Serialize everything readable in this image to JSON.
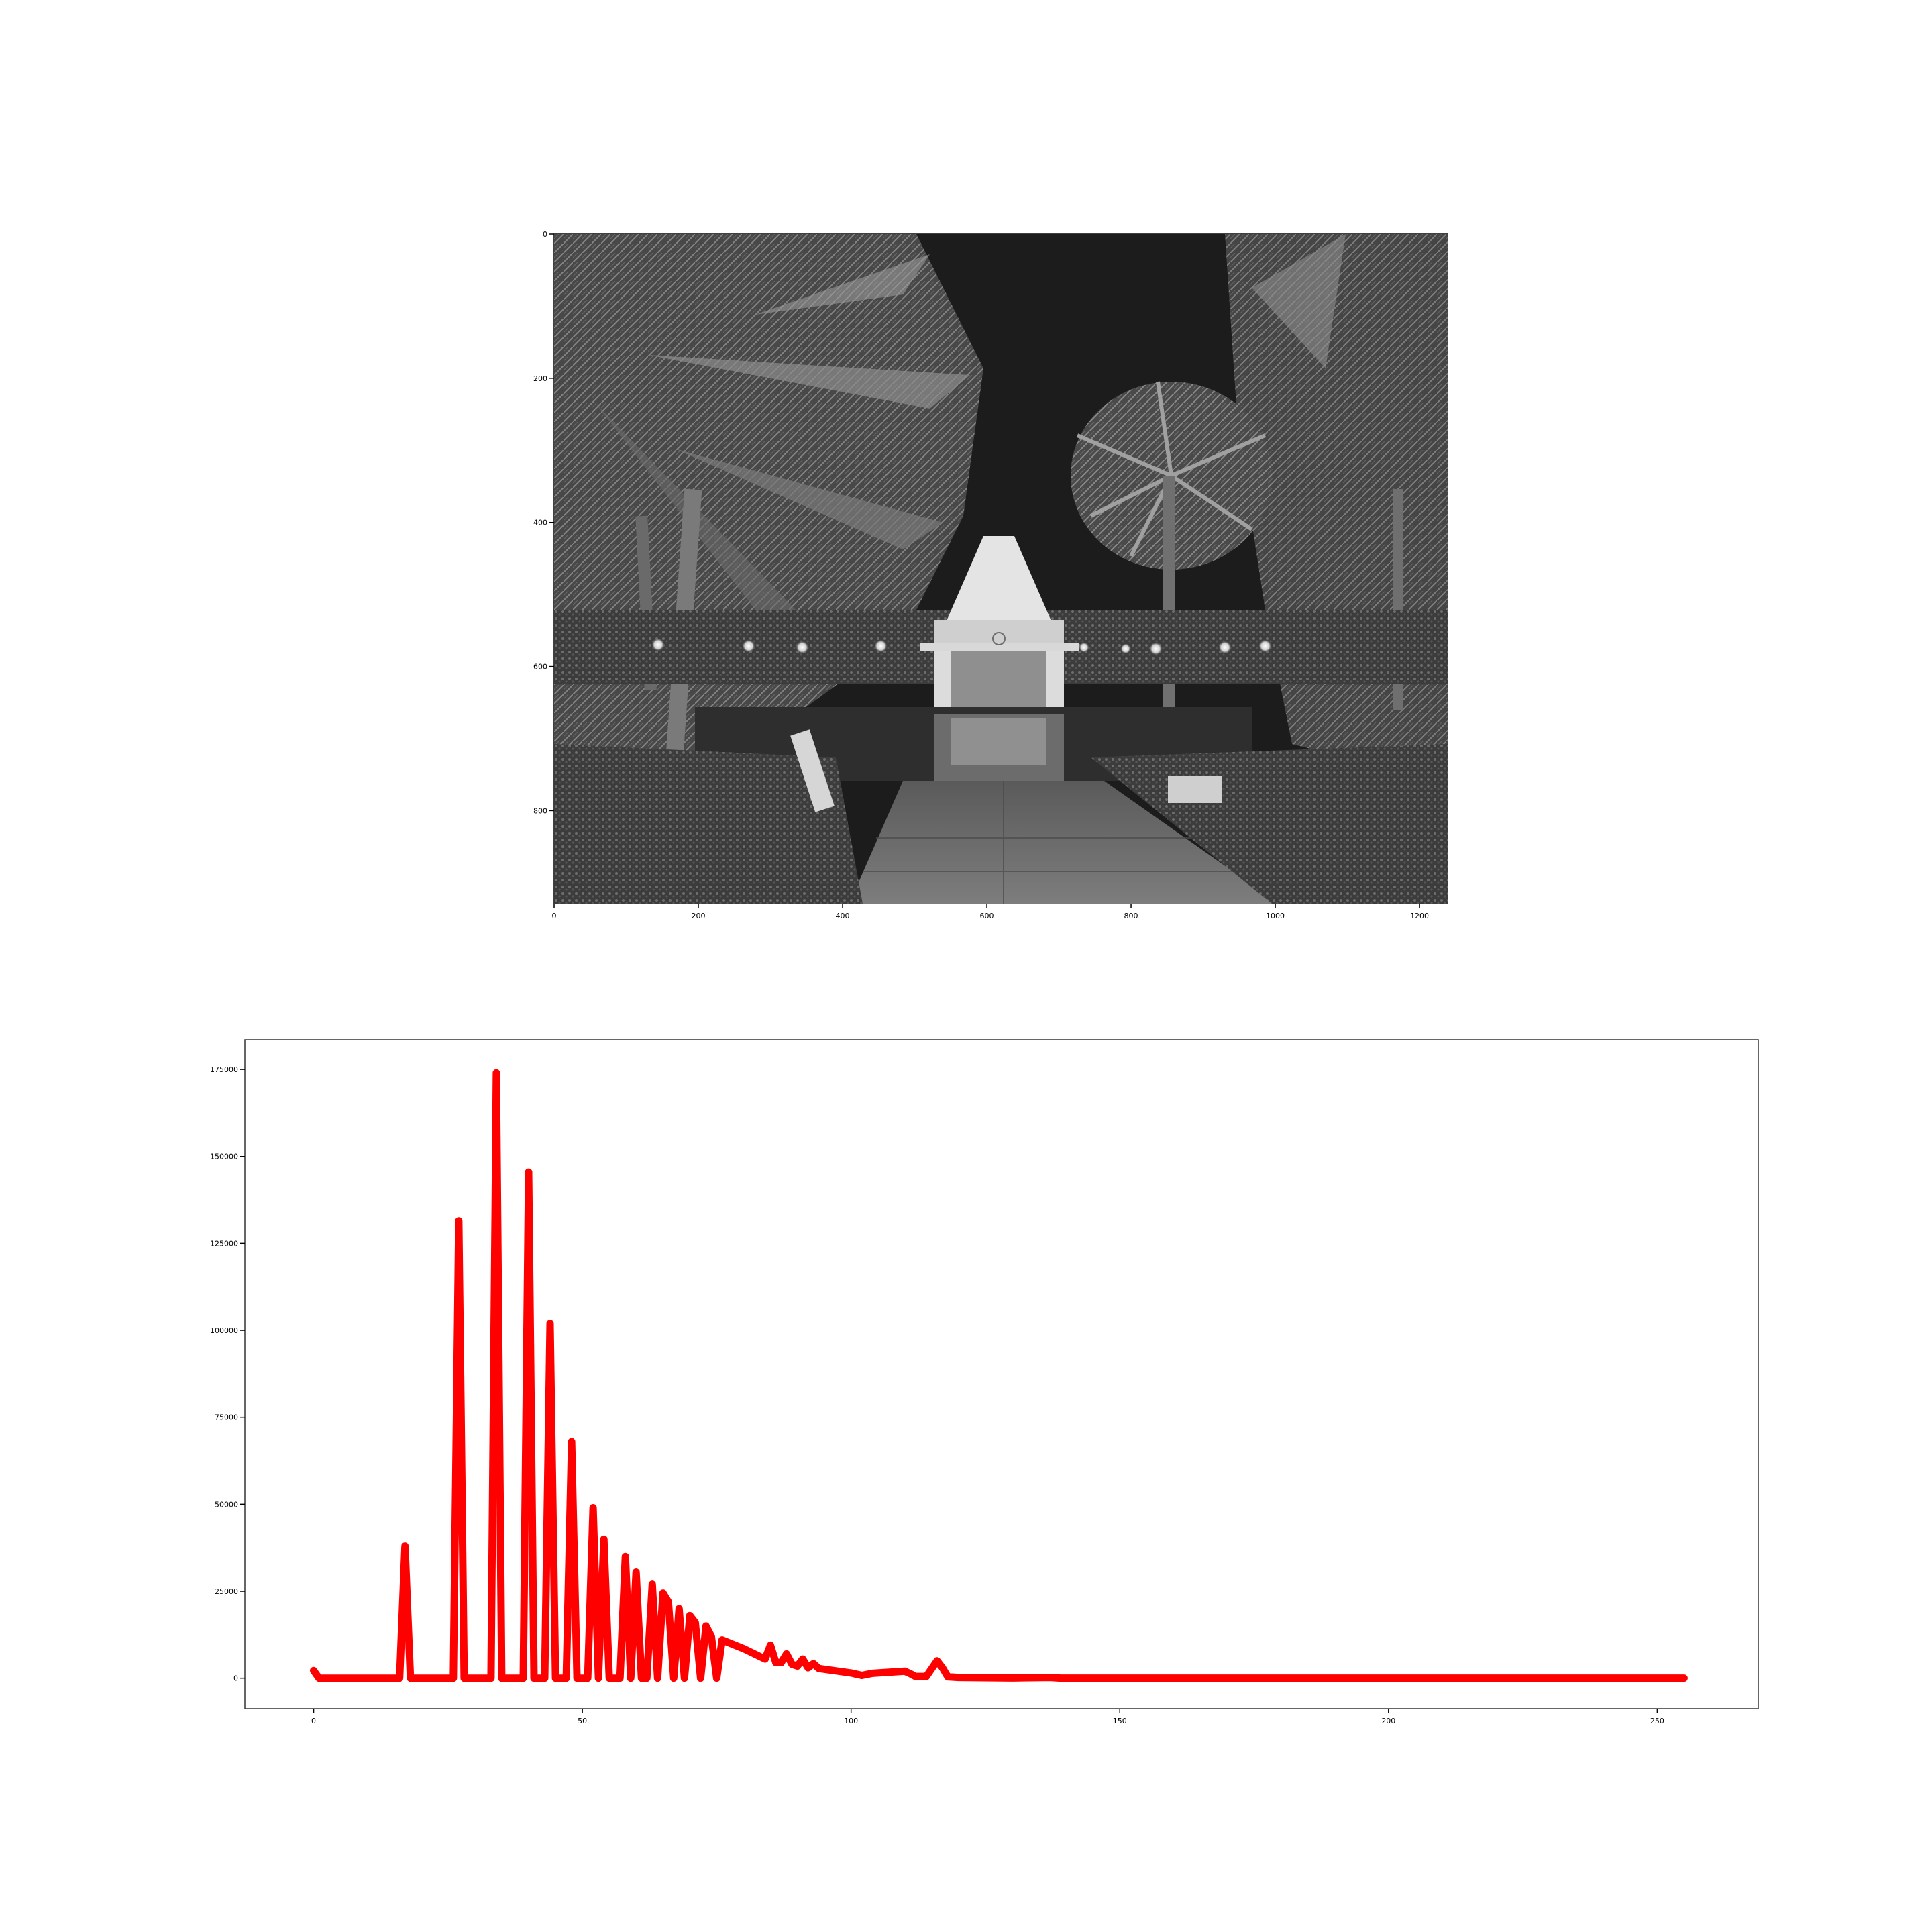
{
  "chart_data": [
    {
      "type": "image",
      "image_description": "grayscale photo",
      "x_ticks": [
        "0",
        "200",
        "400",
        "600",
        "800",
        "1000",
        "1200"
      ],
      "y_ticks": [
        "0",
        "200",
        "400",
        "600",
        "800"
      ],
      "xlim": [
        0,
        1239
      ],
      "ylim": [
        929,
        0
      ]
    },
    {
      "type": "line",
      "title": "",
      "xlabel": "",
      "ylabel": "",
      "xlim": [
        -12.8,
        268.8
      ],
      "ylim": [
        -8740,
        183500
      ],
      "x_ticks": [
        "0",
        "50",
        "100",
        "150",
        "200",
        "250"
      ],
      "y_ticks": [
        "0",
        "25000",
        "50000",
        "75000",
        "100000",
        "125000",
        "150000",
        "175000"
      ],
      "grid": false,
      "color": "#ff0000",
      "series": [
        {
          "x": [
            0,
            1,
            16,
            17,
            18,
            26,
            27,
            28,
            33,
            34,
            35,
            39,
            40,
            41,
            43,
            44,
            45,
            47,
            48,
            49,
            51,
            52,
            53,
            54,
            55,
            57,
            58,
            59,
            60,
            61,
            62,
            63,
            64,
            65,
            66,
            67,
            68,
            69,
            70,
            71,
            72,
            73,
            74,
            75,
            76,
            80,
            84,
            85,
            86,
            87,
            88,
            89,
            90,
            91,
            92,
            93,
            94,
            100,
            102,
            104,
            110,
            111,
            112,
            114,
            116,
            117,
            118,
            120,
            130,
            137,
            139,
            150,
            200,
            255
          ],
          "y": [
            2200,
            0,
            0,
            38000,
            0,
            0,
            131500,
            0,
            0,
            174000,
            0,
            0,
            145500,
            0,
            0,
            102000,
            0,
            0,
            68000,
            0,
            0,
            49000,
            0,
            40000,
            0,
            0,
            35000,
            0,
            30500,
            0,
            0,
            27000,
            0,
            24500,
            22000,
            0,
            20000,
            0,
            18000,
            16000,
            0,
            15000,
            12000,
            0,
            11000,
            8500,
            5500,
            9500,
            4500,
            4500,
            7000,
            4000,
            3500,
            5500,
            3000,
            4200,
            2800,
            1500,
            800,
            1400,
            2000,
            1300,
            500,
            500,
            5000,
            3000,
            400,
            200,
            50,
            200,
            10,
            5,
            5,
            5
          ]
        }
      ]
    }
  ]
}
